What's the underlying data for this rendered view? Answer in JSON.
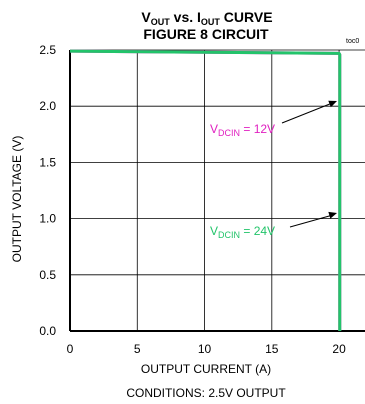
{
  "chart_data": {
    "type": "line",
    "title_parts": {
      "v": "V",
      "v_sub": "OUT",
      "vs": " vs. ",
      "i": "I",
      "i_sub": "OUT",
      "curve": " CURVE"
    },
    "subtitle": "FIGURE 8 CIRCUIT",
    "toc": "toc0",
    "xlabel": "OUTPUT CURRENT (A)",
    "ylabel": "OUTPUT VOLTAGE (V)",
    "note": "CONDITIONS: 2.5V OUTPUT",
    "xlim": [
      0,
      22
    ],
    "ylim": [
      0,
      2.5
    ],
    "x_ticks": [
      0,
      5,
      10,
      15,
      20
    ],
    "x_tick_labels": [
      "0",
      "5",
      "10",
      "15",
      "20"
    ],
    "y_ticks": [
      0,
      0.5,
      1.0,
      1.5,
      2.0,
      2.5
    ],
    "y_tick_labels": [
      "0.0",
      "0.5",
      "1.0",
      "1.5",
      "2.0",
      "2.5"
    ],
    "grid": true,
    "series": [
      {
        "label_main": "V",
        "label_sub": "DCIN",
        "label_rest": " = 12V",
        "color": "#e020c0",
        "x": [
          0,
          10,
          20,
          20.05,
          20.05
        ],
        "y": [
          2.49,
          2.48,
          2.47,
          2.46,
          0
        ]
      },
      {
        "label_main": "V",
        "label_sub": "DCIN",
        "label_rest": " = 24V",
        "color": "#22c46a",
        "x": [
          0,
          10,
          20,
          20.05,
          20.05
        ],
        "y": [
          2.49,
          2.48,
          2.47,
          2.46,
          0
        ]
      }
    ]
  }
}
